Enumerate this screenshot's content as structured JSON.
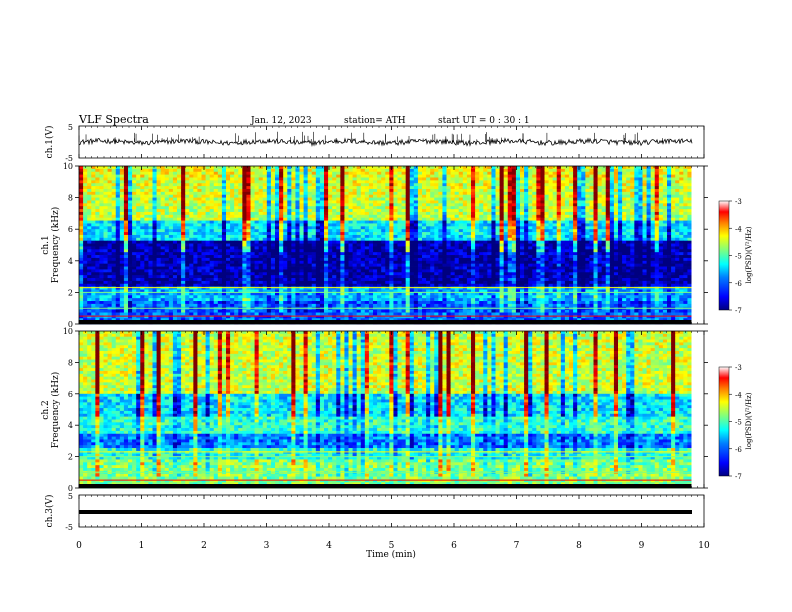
{
  "header": {
    "title": "VLF Spectra",
    "date": "Jan. 12, 2023",
    "station": "station= ATH",
    "start_ut": "start UT =  0 : 30 : 1"
  },
  "panels": {
    "ch1_label": "ch.1(V)",
    "ch3_label": "ch.3(V)",
    "spec1_label": "ch.1",
    "spec2_label": "ch.2",
    "freq_label": "Frequency (kHz)",
    "x_label": "Time (min)",
    "colorbar_label": "log(PSD)(V²/Hz)"
  },
  "chart_data": [
    {
      "type": "line",
      "name": "ch.1 waveform",
      "ylabel": "ch.1(V)",
      "ylim": [
        -5,
        5
      ],
      "yticks": [
        "5",
        "-5"
      ],
      "xlim": [
        0,
        10
      ],
      "baseline": 0,
      "description_of_values": "noisy trace around 0 V with short spikes up to ~+3 V"
    },
    {
      "type": "heatmap",
      "name": "ch.1 spectrogram",
      "xlabel": "Time (min)",
      "ylabel": "Frequency (kHz)",
      "xlim": [
        0,
        10
      ],
      "ylim": [
        0,
        10
      ],
      "yticks": [
        "0",
        "2",
        "4",
        "6",
        "8",
        "10"
      ],
      "colorbar": {
        "label": "log(PSD)(V²/Hz)",
        "range": [
          -7,
          -3
        ],
        "ticks": [
          "-3",
          "-4",
          "-5",
          "-6",
          "-7"
        ]
      },
      "data_end_min": 9.8
    },
    {
      "type": "heatmap",
      "name": "ch.2 spectrogram",
      "xlabel": "Time (min)",
      "ylabel": "Frequency (kHz)",
      "xlim": [
        0,
        10
      ],
      "ylim": [
        0,
        10
      ],
      "yticks": [
        "0",
        "2",
        "4",
        "6",
        "8",
        "10"
      ],
      "colorbar": {
        "label": "log(PSD)(V²/Hz)",
        "range": [
          -7,
          -3
        ],
        "ticks": [
          "-3",
          "-4",
          "-5",
          "-6",
          "-7"
        ]
      },
      "data_end_min": 9.8
    },
    {
      "type": "line",
      "name": "ch.3 waveform",
      "ylabel": "ch.3(V)",
      "ylim": [
        -5,
        5
      ],
      "yticks": [
        "5",
        "-5"
      ],
      "xlim": [
        0,
        10
      ],
      "baseline": 0,
      "description_of_values": "flat thick line at about -1 V"
    }
  ],
  "x_axis": {
    "label": "Time (min)",
    "ticks": [
      "0",
      "1",
      "2",
      "3",
      "4",
      "5",
      "6",
      "7",
      "8",
      "9",
      "10"
    ]
  },
  "colors": {
    "jet": [
      "#00007f",
      "#0000ff",
      "#007fff",
      "#00ffff",
      "#7fff7f",
      "#ffff00",
      "#ff7f00",
      "#ff0000",
      "#7f0000"
    ]
  }
}
